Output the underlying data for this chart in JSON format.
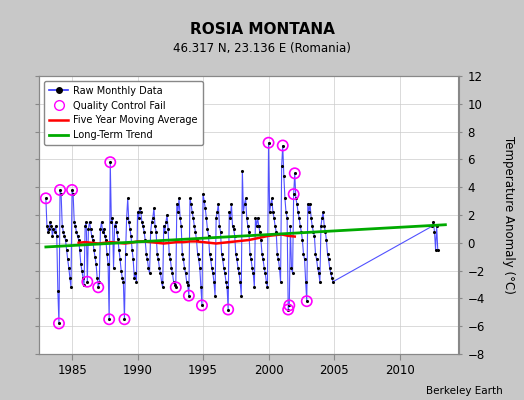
{
  "title": "ROSIA MONTANA",
  "subtitle": "46.317 N, 23.136 E (Romania)",
  "ylabel": "Temperature Anomaly (°C)",
  "attribution": "Berkeley Earth",
  "xlim": [
    1982.5,
    2014.5
  ],
  "ylim": [
    -8,
    12
  ],
  "yticks": [
    -8,
    -6,
    -4,
    -2,
    0,
    2,
    4,
    6,
    8,
    10,
    12
  ],
  "xticks": [
    1985,
    1990,
    1995,
    2000,
    2005,
    2010
  ],
  "bg_color": "#c8c8c8",
  "plot_bg_color": "#ffffff",
  "raw_color": "#3333ff",
  "raw_dot_color": "#000000",
  "qc_color": "#ff00ff",
  "moving_avg_color": "#ff0000",
  "trend_color": "#00aa00",
  "raw_data": [
    [
      1983.0,
      3.2
    ],
    [
      1983.083,
      1.2
    ],
    [
      1983.167,
      0.8
    ],
    [
      1983.25,
      1.0
    ],
    [
      1983.333,
      1.5
    ],
    [
      1983.417,
      1.2
    ],
    [
      1983.5,
      0.5
    ],
    [
      1983.583,
      1.0
    ],
    [
      1983.667,
      0.8
    ],
    [
      1983.75,
      1.2
    ],
    [
      1983.833,
      0.5
    ],
    [
      1983.917,
      -3.5
    ],
    [
      1984.0,
      -5.8
    ],
    [
      1984.083,
      3.8
    ],
    [
      1984.167,
      3.5
    ],
    [
      1984.25,
      1.2
    ],
    [
      1984.333,
      0.8
    ],
    [
      1984.417,
      0.5
    ],
    [
      1984.5,
      0.2
    ],
    [
      1984.583,
      -0.5
    ],
    [
      1984.667,
      -1.2
    ],
    [
      1984.75,
      -1.8
    ],
    [
      1984.833,
      -2.5
    ],
    [
      1984.917,
      -3.2
    ],
    [
      1985.0,
      3.8
    ],
    [
      1985.083,
      3.5
    ],
    [
      1985.167,
      1.5
    ],
    [
      1985.25,
      1.2
    ],
    [
      1985.333,
      0.8
    ],
    [
      1985.417,
      0.5
    ],
    [
      1985.5,
      0.2
    ],
    [
      1985.583,
      -0.5
    ],
    [
      1985.667,
      -1.5
    ],
    [
      1985.75,
      -2.0
    ],
    [
      1985.833,
      -2.5
    ],
    [
      1985.917,
      -3.0
    ],
    [
      1986.0,
      1.2
    ],
    [
      1986.083,
      1.5
    ],
    [
      1986.167,
      -2.8
    ],
    [
      1986.25,
      1.0
    ],
    [
      1986.333,
      1.5
    ],
    [
      1986.417,
      1.0
    ],
    [
      1986.5,
      0.5
    ],
    [
      1986.583,
      0.2
    ],
    [
      1986.667,
      -0.5
    ],
    [
      1986.75,
      -1.0
    ],
    [
      1986.833,
      -1.5
    ],
    [
      1986.917,
      -2.5
    ],
    [
      1987.0,
      -3.2
    ],
    [
      1987.083,
      -2.8
    ],
    [
      1987.167,
      1.0
    ],
    [
      1987.25,
      1.5
    ],
    [
      1987.333,
      0.8
    ],
    [
      1987.417,
      1.0
    ],
    [
      1987.5,
      0.5
    ],
    [
      1987.583,
      0.2
    ],
    [
      1987.667,
      -0.8
    ],
    [
      1987.75,
      -1.5
    ],
    [
      1987.833,
      -5.5
    ],
    [
      1987.917,
      5.8
    ],
    [
      1988.0,
      1.5
    ],
    [
      1988.083,
      1.8
    ],
    [
      1988.167,
      -1.8
    ],
    [
      1988.25,
      1.2
    ],
    [
      1988.333,
      1.5
    ],
    [
      1988.417,
      0.8
    ],
    [
      1988.5,
      0.3
    ],
    [
      1988.583,
      -0.5
    ],
    [
      1988.667,
      -1.2
    ],
    [
      1988.75,
      -2.0
    ],
    [
      1988.833,
      -2.5
    ],
    [
      1988.917,
      -2.8
    ],
    [
      1989.0,
      -5.5
    ],
    [
      1989.083,
      -0.8
    ],
    [
      1989.167,
      1.8
    ],
    [
      1989.25,
      3.2
    ],
    [
      1989.333,
      1.5
    ],
    [
      1989.417,
      1.0
    ],
    [
      1989.5,
      0.5
    ],
    [
      1989.583,
      -0.5
    ],
    [
      1989.667,
      -1.2
    ],
    [
      1989.75,
      -2.5
    ],
    [
      1989.833,
      -2.2
    ],
    [
      1989.917,
      -2.8
    ],
    [
      1990.0,
      2.2
    ],
    [
      1990.083,
      1.8
    ],
    [
      1990.167,
      2.5
    ],
    [
      1990.25,
      2.2
    ],
    [
      1990.333,
      1.5
    ],
    [
      1990.417,
      1.2
    ],
    [
      1990.5,
      0.8
    ],
    [
      1990.583,
      0.2
    ],
    [
      1990.667,
      -0.8
    ],
    [
      1990.75,
      -1.2
    ],
    [
      1990.833,
      -1.8
    ],
    [
      1990.917,
      -2.2
    ],
    [
      1991.0,
      0.8
    ],
    [
      1991.083,
      1.5
    ],
    [
      1991.167,
      1.8
    ],
    [
      1991.25,
      2.5
    ],
    [
      1991.333,
      1.2
    ],
    [
      1991.417,
      0.8
    ],
    [
      1991.5,
      -0.8
    ],
    [
      1991.583,
      -1.2
    ],
    [
      1991.667,
      -1.8
    ],
    [
      1991.75,
      -2.2
    ],
    [
      1991.833,
      -2.8
    ],
    [
      1991.917,
      -3.2
    ],
    [
      1992.0,
      1.2
    ],
    [
      1992.083,
      0.8
    ],
    [
      1992.167,
      1.5
    ],
    [
      1992.25,
      2.0
    ],
    [
      1992.333,
      1.0
    ],
    [
      1992.417,
      -0.8
    ],
    [
      1992.5,
      -1.2
    ],
    [
      1992.583,
      -1.8
    ],
    [
      1992.667,
      -2.2
    ],
    [
      1992.75,
      -2.8
    ],
    [
      1992.833,
      -3.0
    ],
    [
      1992.917,
      -3.2
    ],
    [
      1993.0,
      2.8
    ],
    [
      1993.083,
      2.2
    ],
    [
      1993.167,
      3.2
    ],
    [
      1993.25,
      1.8
    ],
    [
      1993.333,
      1.2
    ],
    [
      1993.417,
      -0.8
    ],
    [
      1993.5,
      -1.2
    ],
    [
      1993.583,
      -1.8
    ],
    [
      1993.667,
      -2.2
    ],
    [
      1993.75,
      -2.8
    ],
    [
      1993.833,
      -3.0
    ],
    [
      1993.917,
      -3.8
    ],
    [
      1994.0,
      3.2
    ],
    [
      1994.083,
      2.8
    ],
    [
      1994.167,
      2.2
    ],
    [
      1994.25,
      1.8
    ],
    [
      1994.333,
      1.2
    ],
    [
      1994.417,
      0.8
    ],
    [
      1994.5,
      0.2
    ],
    [
      1994.583,
      -0.8
    ],
    [
      1994.667,
      -1.2
    ],
    [
      1994.75,
      -1.8
    ],
    [
      1994.833,
      -3.2
    ],
    [
      1994.917,
      -4.5
    ],
    [
      1995.0,
      3.5
    ],
    [
      1995.083,
      3.0
    ],
    [
      1995.167,
      2.5
    ],
    [
      1995.25,
      1.8
    ],
    [
      1995.333,
      1.0
    ],
    [
      1995.417,
      0.5
    ],
    [
      1995.5,
      -0.8
    ],
    [
      1995.583,
      -1.2
    ],
    [
      1995.667,
      -1.8
    ],
    [
      1995.75,
      -2.2
    ],
    [
      1995.833,
      -2.8
    ],
    [
      1995.917,
      -3.8
    ],
    [
      1996.0,
      1.8
    ],
    [
      1996.083,
      2.2
    ],
    [
      1996.167,
      2.8
    ],
    [
      1996.25,
      1.2
    ],
    [
      1996.333,
      0.8
    ],
    [
      1996.417,
      -0.8
    ],
    [
      1996.5,
      -1.2
    ],
    [
      1996.583,
      -1.8
    ],
    [
      1996.667,
      -2.2
    ],
    [
      1996.75,
      -2.8
    ],
    [
      1996.833,
      -3.2
    ],
    [
      1996.917,
      -4.8
    ],
    [
      1997.0,
      2.2
    ],
    [
      1997.083,
      1.8
    ],
    [
      1997.167,
      2.8
    ],
    [
      1997.25,
      1.2
    ],
    [
      1997.333,
      1.0
    ],
    [
      1997.417,
      0.5
    ],
    [
      1997.5,
      -0.8
    ],
    [
      1997.583,
      -1.2
    ],
    [
      1997.667,
      -1.8
    ],
    [
      1997.75,
      -2.2
    ],
    [
      1997.833,
      -2.8
    ],
    [
      1997.917,
      -3.8
    ],
    [
      1998.0,
      5.2
    ],
    [
      1998.083,
      2.2
    ],
    [
      1998.167,
      2.8
    ],
    [
      1998.25,
      3.2
    ],
    [
      1998.333,
      1.8
    ],
    [
      1998.417,
      1.2
    ],
    [
      1998.5,
      0.8
    ],
    [
      1998.583,
      -0.8
    ],
    [
      1998.667,
      -1.2
    ],
    [
      1998.75,
      -1.8
    ],
    [
      1998.833,
      -2.2
    ],
    [
      1998.917,
      -3.2
    ],
    [
      1999.0,
      1.8
    ],
    [
      1999.083,
      1.2
    ],
    [
      1999.167,
      1.8
    ],
    [
      1999.25,
      1.2
    ],
    [
      1999.333,
      0.8
    ],
    [
      1999.417,
      0.2
    ],
    [
      1999.5,
      -0.8
    ],
    [
      1999.583,
      -1.2
    ],
    [
      1999.667,
      -1.8
    ],
    [
      1999.75,
      -2.2
    ],
    [
      1999.833,
      -2.8
    ],
    [
      1999.917,
      -3.2
    ],
    [
      2000.0,
      7.2
    ],
    [
      2000.083,
      2.2
    ],
    [
      2000.167,
      2.8
    ],
    [
      2000.25,
      3.2
    ],
    [
      2000.333,
      2.2
    ],
    [
      2000.417,
      1.8
    ],
    [
      2000.5,
      1.2
    ],
    [
      2000.583,
      0.8
    ],
    [
      2000.667,
      -0.8
    ],
    [
      2000.75,
      -1.2
    ],
    [
      2000.833,
      -1.8
    ],
    [
      2000.917,
      -2.8
    ],
    [
      2001.0,
      5.5
    ],
    [
      2001.083,
      7.0
    ],
    [
      2001.167,
      4.8
    ],
    [
      2001.25,
      3.2
    ],
    [
      2001.333,
      2.2
    ],
    [
      2001.417,
      1.8
    ],
    [
      2001.5,
      -4.8
    ],
    [
      2001.583,
      -4.5
    ],
    [
      2001.667,
      1.2
    ],
    [
      2001.75,
      -1.8
    ],
    [
      2001.833,
      -2.2
    ],
    [
      2001.917,
      3.5
    ],
    [
      2002.0,
      5.0
    ],
    [
      2002.083,
      3.2
    ],
    [
      2002.167,
      2.8
    ],
    [
      2002.25,
      2.2
    ],
    [
      2002.333,
      1.8
    ],
    [
      2002.417,
      1.2
    ],
    [
      2002.5,
      0.8
    ],
    [
      2002.583,
      0.2
    ],
    [
      2002.667,
      -0.8
    ],
    [
      2002.75,
      -1.2
    ],
    [
      2002.833,
      -2.8
    ],
    [
      2002.917,
      -4.2
    ],
    [
      2003.0,
      2.8
    ],
    [
      2003.083,
      2.2
    ],
    [
      2003.167,
      2.8
    ],
    [
      2003.25,
      1.8
    ],
    [
      2003.333,
      1.2
    ],
    [
      2003.417,
      0.8
    ],
    [
      2003.5,
      0.5
    ],
    [
      2003.583,
      -0.8
    ],
    [
      2003.667,
      -1.2
    ],
    [
      2003.75,
      -1.8
    ],
    [
      2003.833,
      -2.2
    ],
    [
      2003.917,
      -2.8
    ],
    [
      2004.0,
      1.2
    ],
    [
      2004.083,
      1.8
    ],
    [
      2004.167,
      2.2
    ],
    [
      2004.25,
      1.2
    ],
    [
      2004.333,
      0.8
    ],
    [
      2004.417,
      0.2
    ],
    [
      2004.5,
      -0.8
    ],
    [
      2004.583,
      -1.2
    ],
    [
      2004.667,
      -1.8
    ],
    [
      2004.75,
      -2.2
    ],
    [
      2004.833,
      -2.5
    ],
    [
      2004.917,
      -2.8
    ],
    [
      2012.5,
      1.2
    ],
    [
      2012.583,
      1.5
    ],
    [
      2012.667,
      0.8
    ],
    [
      2012.75,
      -0.5
    ],
    [
      2012.833,
      1.2
    ],
    [
      2012.917,
      -0.5
    ]
  ],
  "qc_fail_points": [
    [
      1983.0,
      3.2
    ],
    [
      1984.0,
      -5.8
    ],
    [
      1984.083,
      3.8
    ],
    [
      1985.0,
      3.8
    ],
    [
      1986.167,
      -2.8
    ],
    [
      1987.0,
      -3.2
    ],
    [
      1987.833,
      -5.5
    ],
    [
      1987.917,
      5.8
    ],
    [
      1989.0,
      -5.5
    ],
    [
      1992.917,
      -3.2
    ],
    [
      1993.917,
      -3.8
    ],
    [
      1994.917,
      -4.5
    ],
    [
      1996.917,
      -4.8
    ],
    [
      2000.0,
      7.2
    ],
    [
      2001.083,
      7.0
    ],
    [
      2001.5,
      -4.8
    ],
    [
      2001.583,
      -4.5
    ],
    [
      2001.917,
      3.5
    ],
    [
      2002.0,
      5.0
    ],
    [
      2002.917,
      -4.2
    ]
  ],
  "moving_avg_x": [
    1985.5,
    1986.0,
    1986.5,
    1987.0,
    1987.5,
    1988.0,
    1988.5,
    1989.0,
    1989.5,
    1990.0,
    1990.5,
    1991.0,
    1991.5,
    1992.0,
    1992.5,
    1993.0,
    1993.5,
    1994.0,
    1994.5,
    1995.0,
    1995.5,
    1996.0,
    1996.5,
    1997.0,
    1997.5,
    1998.0,
    1998.5,
    1999.0,
    1999.5,
    2000.0,
    2000.5,
    2001.0,
    2001.5,
    2002.0
  ],
  "moving_avg_y": [
    0.0,
    0.05,
    0.0,
    -0.05,
    0.0,
    0.05,
    0.0,
    -0.05,
    0.0,
    0.1,
    0.1,
    0.05,
    0.0,
    -0.05,
    0.0,
    0.05,
    0.05,
    0.1,
    0.1,
    0.05,
    0.0,
    -0.05,
    0.0,
    0.05,
    0.1,
    0.15,
    0.2,
    0.3,
    0.4,
    0.5,
    0.55,
    0.6,
    0.5,
    0.45
  ],
  "trend_x": [
    1983.0,
    2013.5
  ],
  "trend_y": [
    -0.3,
    1.3
  ]
}
